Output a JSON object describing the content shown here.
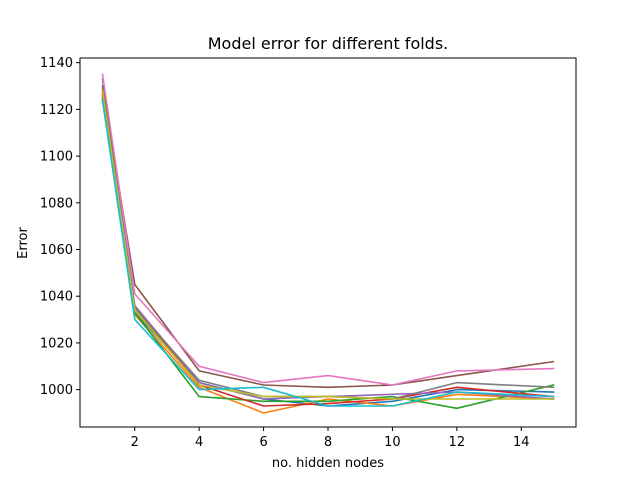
{
  "chart_data": {
    "type": "line",
    "title": "Model error for different folds.",
    "xlabel": "no. hidden nodes",
    "ylabel": "Error",
    "xlim": [
      0.3,
      15.7
    ],
    "ylim": [
      984,
      1142
    ],
    "xticks": [
      2,
      4,
      6,
      8,
      10,
      12,
      14
    ],
    "yticks": [
      1000,
      1020,
      1040,
      1060,
      1080,
      1100,
      1120,
      1140
    ],
    "grid": false,
    "x": [
      1,
      2,
      4,
      6,
      8,
      10,
      12,
      15
    ],
    "series": [
      {
        "color": "#1f77b4",
        "values": [
          1125,
          1033,
          1003,
          996,
          993,
          995,
          1000,
          999
        ]
      },
      {
        "color": "#ff7f0e",
        "values": [
          1126,
          1032,
          1001,
          990,
          996,
          993,
          998,
          996
        ]
      },
      {
        "color": "#2ca02c",
        "values": [
          1124,
          1033,
          997,
          995,
          995,
          997,
          992,
          1002
        ]
      },
      {
        "color": "#d62728",
        "values": [
          1127,
          1035,
          1002,
          993,
          994,
          996,
          1001,
          997
        ]
      },
      {
        "color": "#9467bd",
        "values": [
          1133,
          1036,
          1003,
          996,
          997,
          998,
          999,
          996
        ]
      },
      {
        "color": "#8c564b",
        "values": [
          1130,
          1045,
          1008,
          1002,
          1001,
          1002,
          1006,
          1012
        ]
      },
      {
        "color": "#e377c2",
        "values": [
          1135,
          1041,
          1010,
          1003,
          1006,
          1002,
          1008,
          1009
        ]
      },
      {
        "color": "#7f7f7f",
        "values": [
          1129,
          1035,
          1004,
          997,
          997,
          996,
          1003,
          1001
        ]
      },
      {
        "color": "#bcbd22",
        "values": [
          1128,
          1034,
          1002,
          997,
          997,
          996,
          996,
          996
        ]
      },
      {
        "color": "#17becf",
        "values": [
          1124,
          1030,
          1000,
          1001,
          993,
          993,
          999,
          997
        ]
      }
    ]
  }
}
